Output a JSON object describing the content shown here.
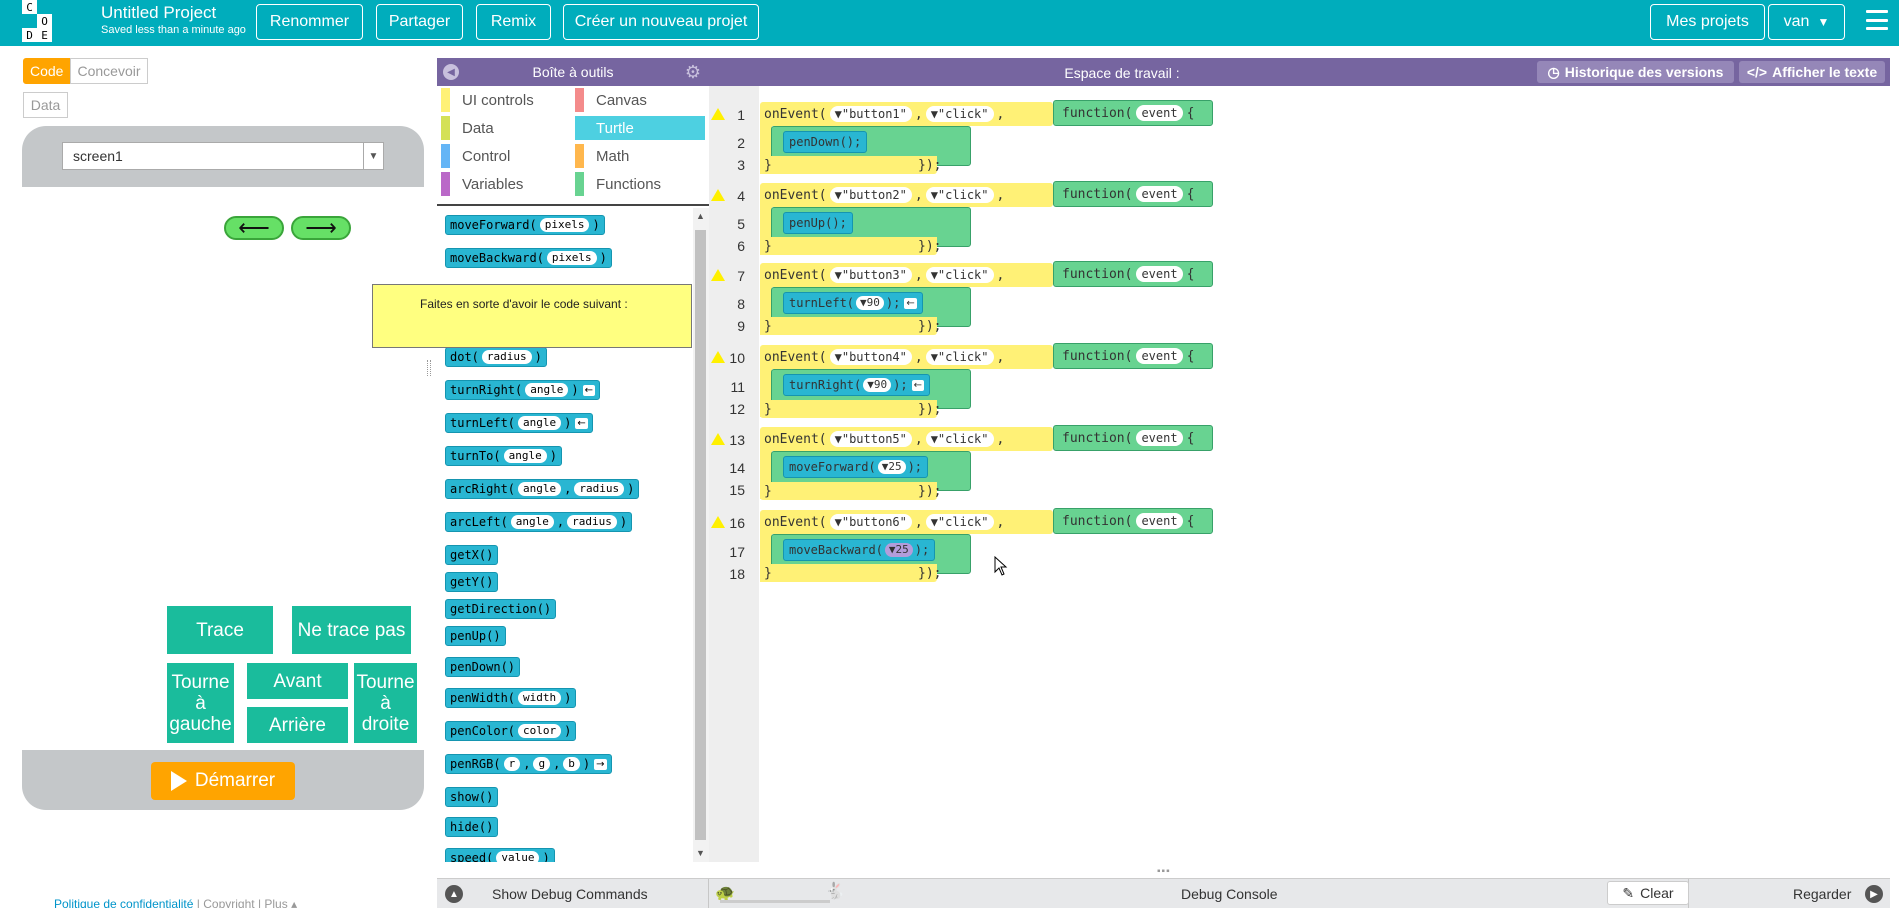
{
  "header": {
    "logo_letters": [
      "C",
      "O",
      "D",
      "E"
    ],
    "project_name": "Untitled Project",
    "saved_status": "Saved less than a minute ago",
    "rename": "Renommer",
    "share": "Partager",
    "remix": "Remix",
    "new_project": "Créer un nouveau projet",
    "my_projects": "Mes projets",
    "user": "van"
  },
  "mode": {
    "code": "Code",
    "design": "Concevoir",
    "data": "Data"
  },
  "app": {
    "screen": "screen1",
    "left_arrow": "⟵",
    "right_arrow": "⟶",
    "buttons": {
      "trace": "Trace",
      "no_trace": "Ne trace pas",
      "turn_left": "Tourne à gauche",
      "forward": "Avant",
      "turn_right": "Tourne à droite",
      "backward": "Arrière"
    },
    "run": "Démarrer",
    "accent": "#1abc9c",
    "run_color": "#ffa400"
  },
  "footer": {
    "privacy": "Politique de confidentialité",
    "copyright": "Copyright",
    "more": "Plus ▴"
  },
  "toolbox": {
    "title": "Boîte à outils",
    "categories": [
      {
        "label": "UI controls",
        "color": "#fff176"
      },
      {
        "label": "Canvas",
        "color": "#f48b8b"
      },
      {
        "label": "Data",
        "color": "#d4e157"
      },
      {
        "label": "Turtle",
        "color": "#4dd0e1"
      },
      {
        "label": "Control",
        "color": "#64b5f6"
      },
      {
        "label": "Math",
        "color": "#ffb74d"
      },
      {
        "label": "Variables",
        "color": "#ba68c8"
      },
      {
        "label": "Functions",
        "color": "#68d391"
      }
    ],
    "blocks": {
      "moveForward": "moveForward(",
      "moveForward_p": "pixels",
      "moveBackward": "moveBackward(",
      "moveBackward_p": "pixels",
      "dot": "dot(",
      "dot_p": "radius",
      "turnRight": "turnRight(",
      "turnRight_p": "angle",
      "turnLeft": "turnLeft(",
      "turnLeft_p": "angle",
      "turnTo": "turnTo(",
      "turnTo_p": "angle",
      "arcRight": "arcRight(",
      "arcLeft": "arcLeft(",
      "arc_p1": "angle",
      "arc_p2": "radius",
      "getX": "getX()",
      "getY": "getY()",
      "getDirection": "getDirection()",
      "penUp": "penUp()",
      "penDown": "penDown()",
      "penWidth": "penWidth(",
      "penWidth_p": "width",
      "penColor": "penColor(",
      "penColor_p": "color",
      "penRGB": "penRGB(",
      "penRGB_r": "r",
      "penRGB_g": "g",
      "penRGB_b": "b",
      "show": "show()",
      "hide": "hide()",
      "speed": "speed(",
      "speed_p": "value",
      "close": ")",
      "comma": ",",
      "ret_arrow": "←",
      "ret_arrow2": "→"
    },
    "tooltip": "Faites en sorte d'avoir le code suivant :"
  },
  "workspace": {
    "title": "Espace de travail :",
    "history": "Historique des versions",
    "show_text": "Afficher le texte",
    "line_numbers": [
      "1",
      "2",
      "3",
      "4",
      "5",
      "6",
      "7",
      "8",
      "9",
      "10",
      "11",
      "12",
      "13",
      "14",
      "15",
      "16",
      "17",
      "18"
    ],
    "kw_onEvent": "onEvent(",
    "kw_function": "function(",
    "kw_event": "event",
    "kw_click": "▼\"click\"",
    "brace_open": "{",
    "close_paren": "});",
    "brace_close": "}",
    "comma": ",",
    "events": [
      {
        "id": "▼\"button1\"",
        "stmt": "penDown();",
        "arg": ""
      },
      {
        "id": "▼\"button2\"",
        "stmt": "penUp();",
        "arg": ""
      },
      {
        "id": "▼\"button3\"",
        "stmt": "turnLeft(",
        "arg": "▼90"
      },
      {
        "id": "▼\"button4\"",
        "stmt": "turnRight(",
        "arg": "▼90"
      },
      {
        "id": "▼\"button5\"",
        "stmt": "moveForward(",
        "arg": "▼25"
      },
      {
        "id": "▼\"button6\"",
        "stmt": "moveBackward(",
        "arg": "▼25"
      }
    ],
    "stmt_end": ");",
    "ret_arrow": "←"
  },
  "debug": {
    "show_commands": "Show Debug Commands",
    "console": "Debug Console",
    "clear": "Clear",
    "watch": "Regarder"
  }
}
